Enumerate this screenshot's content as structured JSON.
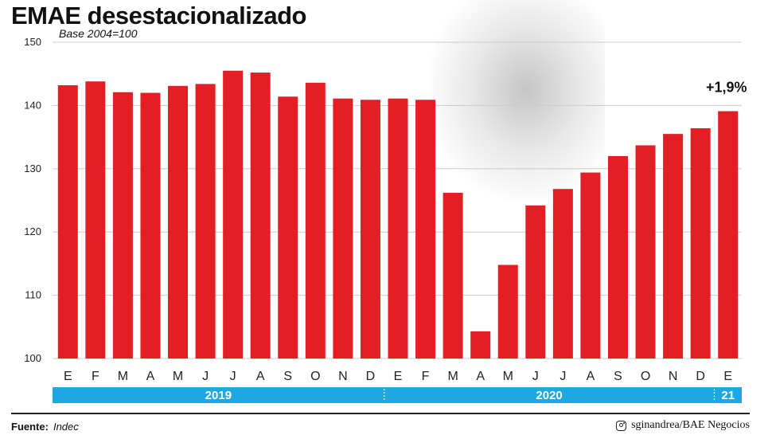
{
  "title": "EMAE desestacionalizado",
  "subtitle": "Base 2004=100",
  "source_label": "Fuente:",
  "source_value": "Indec",
  "credit": "sginandrea/BAE Negocios",
  "colors": {
    "bar": "#e31e24",
    "timeline": "#1da8e3",
    "grid": "#cccccc"
  },
  "chart_data": {
    "type": "bar",
    "categories": [
      "E",
      "F",
      "M",
      "A",
      "M",
      "J",
      "J",
      "A",
      "S",
      "O",
      "N",
      "D",
      "E",
      "F",
      "M",
      "A",
      "M",
      "J",
      "J",
      "A",
      "S",
      "O",
      "N",
      "D",
      "E"
    ],
    "values": [
      143.2,
      143.8,
      142.1,
      142.0,
      143.1,
      143.4,
      145.5,
      145.2,
      141.4,
      143.6,
      141.1,
      140.9,
      141.1,
      140.9,
      126.2,
      104.3,
      114.8,
      124.2,
      126.8,
      129.4,
      132.0,
      133.7,
      135.5,
      136.4,
      139.1
    ],
    "ylim": [
      100,
      150
    ],
    "yticks": [
      "100",
      "110",
      "120",
      "130",
      "140",
      "150"
    ],
    "annotation": "+1,9%",
    "years": [
      {
        "label": "2019",
        "months": 12
      },
      {
        "label": "2020",
        "months": 12
      },
      {
        "label": "21",
        "months": 1
      }
    ],
    "grid": true
  }
}
